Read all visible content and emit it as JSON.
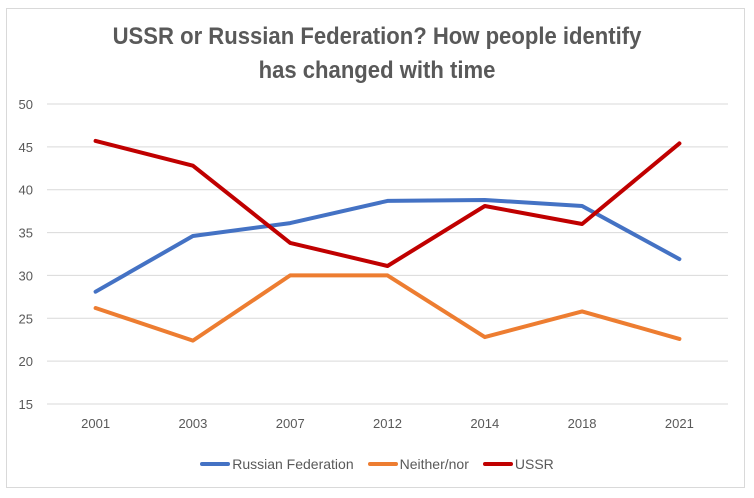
{
  "chart_data": {
    "type": "line",
    "title": "USSR or Russian Federation? How people identify has changed with time",
    "title_lines": [
      "USSR or Russian Federation? How people identify",
      "has changed with time"
    ],
    "xlabel": "",
    "ylabel": "",
    "categories": [
      "2001",
      "2003",
      "2007",
      "2012",
      "2014",
      "2018",
      "2021"
    ],
    "ylim": [
      15,
      50
    ],
    "yticks": [
      15,
      20,
      25,
      30,
      35,
      40,
      45,
      50
    ],
    "grid": true,
    "legend_position": "bottom",
    "series": [
      {
        "name": "Russian Federation",
        "color": "#4472C4",
        "values": [
          28.1,
          34.6,
          36.1,
          38.7,
          38.8,
          38.1,
          31.9
        ]
      },
      {
        "name": "Neither/nor",
        "color": "#ED7D31",
        "values": [
          26.2,
          22.4,
          30.0,
          30.0,
          22.8,
          25.8,
          22.6
        ]
      },
      {
        "name": "USSR",
        "color": "#C00000",
        "values": [
          45.7,
          42.8,
          33.8,
          31.1,
          38.1,
          36.0,
          45.4
        ]
      }
    ]
  },
  "legend": {
    "items": [
      {
        "label": "Russian Federation",
        "color": "#4472C4"
      },
      {
        "label": "Neither/nor",
        "color": "#ED7D31"
      },
      {
        "label": "USSR",
        "color": "#C00000"
      }
    ]
  }
}
